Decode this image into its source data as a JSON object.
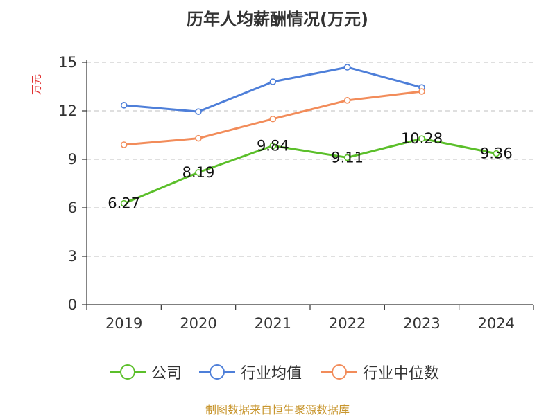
{
  "chart_data": {
    "type": "line",
    "title": "历年人均薪酬情况(万元)",
    "ylabel": "万元",
    "xlabel": "",
    "categories": [
      "2019",
      "2020",
      "2021",
      "2022",
      "2023",
      "2024"
    ],
    "ylim": [
      0,
      15
    ],
    "yticks": [
      0,
      3,
      6,
      9,
      12,
      15
    ],
    "grid": true,
    "legend_position": "bottom",
    "series": [
      {
        "name": "公司",
        "color": "#5bbf2a",
        "show_labels": true,
        "values": [
          6.27,
          8.19,
          9.84,
          9.11,
          10.28,
          9.36
        ],
        "labels": [
          "6.27",
          "8.19",
          "9.84",
          "9.11",
          "10.28",
          "9.36"
        ]
      },
      {
        "name": "行业均值",
        "color": "#4e7fd9",
        "show_labels": false,
        "values": [
          12.35,
          11.95,
          13.8,
          14.7,
          13.45,
          null
        ]
      },
      {
        "name": "行业中位数",
        "color": "#f28c5a",
        "show_labels": false,
        "values": [
          9.9,
          10.3,
          11.5,
          12.65,
          13.2,
          null
        ]
      }
    ]
  },
  "source_text": "制图数据来自恒生聚源数据库",
  "colors": {
    "unit_label": "#e03030",
    "source_text": "#c8962e",
    "grid": "#cccccc",
    "axis": "#333333"
  }
}
